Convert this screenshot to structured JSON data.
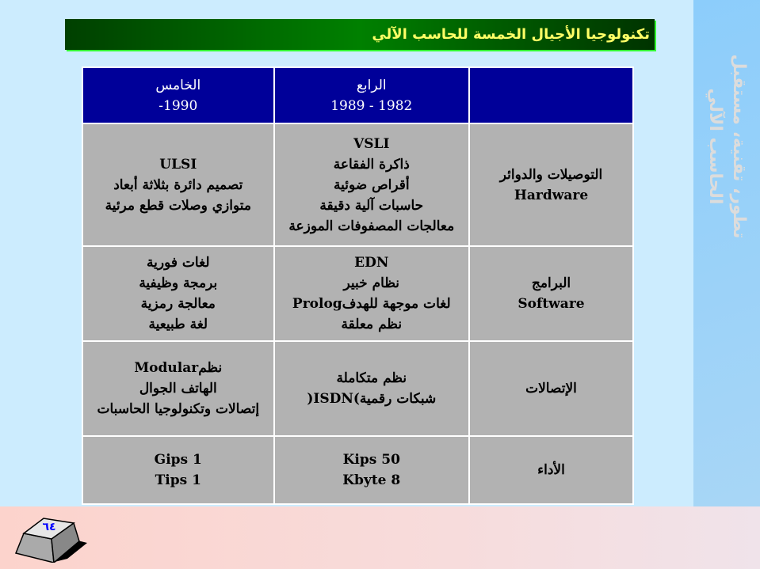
{
  "title": "تكنولوجيا الأجيال الخمسة للحاسب الآلي",
  "side_panel": {
    "line1": "تطور، تقنية، مستقبل",
    "line2": "الحاسب الآلي"
  },
  "table": {
    "headers": [
      {
        "name": "",
        "years": ""
      },
      {
        "name": "الرابع",
        "years": "1982  -  1989"
      },
      {
        "name": "الخامس",
        "years": "1990-"
      }
    ],
    "rows": [
      {
        "label": [
          "التوصيلات والدوائر",
          "Hardware"
        ],
        "fourth": [
          "VSLI",
          "ذاكرة الفقاعة",
          "أقراص ضوئية",
          "حاسبات آلية دقيقة",
          "معالجات المصفوفات الموزعة"
        ],
        "fifth": [
          "ULSI",
          "تصميم دائرة بثلاثة أبعاد",
          "متوازي وصلات قطع مرئية"
        ]
      },
      {
        "label": [
          "البرامج",
          "Software"
        ],
        "fourth": [
          "EDN",
          "نظام خبير",
          "لغات موجهة للهدفProlog",
          "نظم معلقة"
        ],
        "fifth": [
          "لغات فورية",
          "برمجة وظيفية",
          "معالجة رمزية",
          "لغة طبيعية"
        ]
      },
      {
        "label": [
          "الإتصالات"
        ],
        "fourth": [
          "نظم متكاملة",
          "شبكات رقمية)ISDN("
        ],
        "fifth": [
          "نظمModular",
          "الهاتف الجوال",
          "إتصالات وتكنولوجيا الحاسبات"
        ]
      },
      {
        "label": [
          "الأداء"
        ],
        "fourth": [
          "50 Kips",
          "8 Kbyte"
        ],
        "fifth": [
          "1 Gips",
          "1 Tips"
        ]
      }
    ]
  },
  "page_number": "٦٤",
  "colors": {
    "header": "#000099",
    "cell": "#b2b2b2",
    "title_text": "#ffff66"
  }
}
